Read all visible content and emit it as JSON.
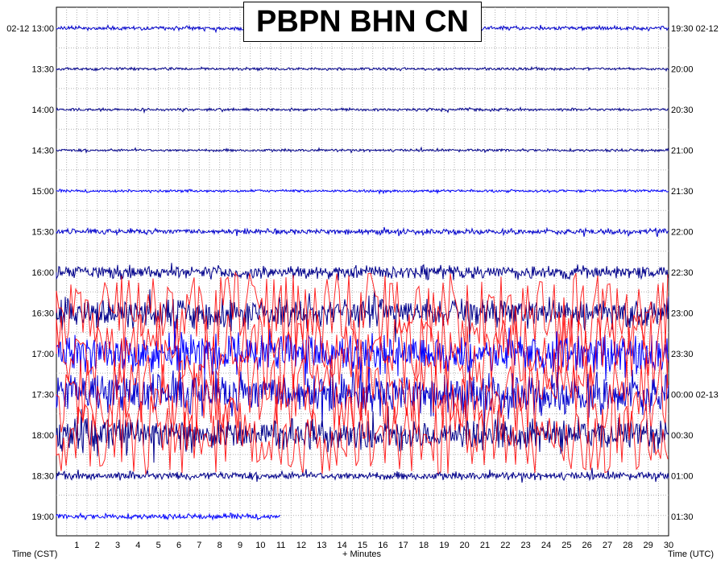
{
  "chart_data": {
    "type": "helicorder",
    "title": "PBPN BHN CN",
    "left_axis_label": "Time (CST)",
    "right_axis_label": "Time (UTC)",
    "x_axis_label": "+ Minutes",
    "x_ticks": [
      "1",
      "2",
      "3",
      "4",
      "5",
      "6",
      "7",
      "8",
      "9",
      "10",
      "11",
      "12",
      "13",
      "14",
      "15",
      "16",
      "17",
      "18",
      "19",
      "20",
      "21",
      "22",
      "23",
      "24",
      "25",
      "26",
      "27",
      "28",
      "29",
      "30"
    ],
    "xlim": [
      0,
      30
    ],
    "trace_colors": [
      "#0000cd",
      "#00008b",
      "#0000ff",
      "#ff0000"
    ],
    "rows": [
      {
        "left": "02-12 13:00",
        "right": "19:30 02-12",
        "amplitude": 3,
        "color": "#0000cd",
        "end_minute": 30
      },
      {
        "left": "13:30",
        "right": "20:00",
        "amplitude": 2,
        "color": "#00008b",
        "end_minute": 30
      },
      {
        "left": "14:00",
        "right": "20:30",
        "amplitude": 2,
        "color": "#00008b",
        "end_minute": 30
      },
      {
        "left": "14:30",
        "right": "21:00",
        "amplitude": 2,
        "color": "#00008b",
        "end_minute": 30
      },
      {
        "left": "15:00",
        "right": "21:30",
        "amplitude": 2,
        "color": "#0000ff",
        "end_minute": 30
      },
      {
        "left": "15:30",
        "right": "22:00",
        "amplitude": 4,
        "color": "#0000cd",
        "end_minute": 30
      },
      {
        "left": "16:00",
        "right": "22:30",
        "amplitude": 10,
        "color": "#00008b",
        "end_minute": 30
      },
      {
        "left": "16:30",
        "right": "23:00",
        "amplitude": 22,
        "color": "#00008b",
        "end_minute": 30
      },
      {
        "left": "17:00",
        "right": "23:30",
        "amplitude": 30,
        "color": "#0000ff",
        "end_minute": 30
      },
      {
        "left": "17:30",
        "right": "00:00 02-13",
        "amplitude": 30,
        "color": "#0000cd",
        "end_minute": 30
      },
      {
        "left": "18:00",
        "right": "00:30",
        "amplitude": 24,
        "color": "#00008b",
        "end_minute": 30
      },
      {
        "left": "18:30",
        "right": "01:00",
        "amplitude": 6,
        "color": "#00008b",
        "end_minute": 30
      },
      {
        "left": "19:00",
        "right": "01:30",
        "amplitude": 4,
        "color": "#0000ff",
        "end_minute": 11
      }
    ]
  }
}
